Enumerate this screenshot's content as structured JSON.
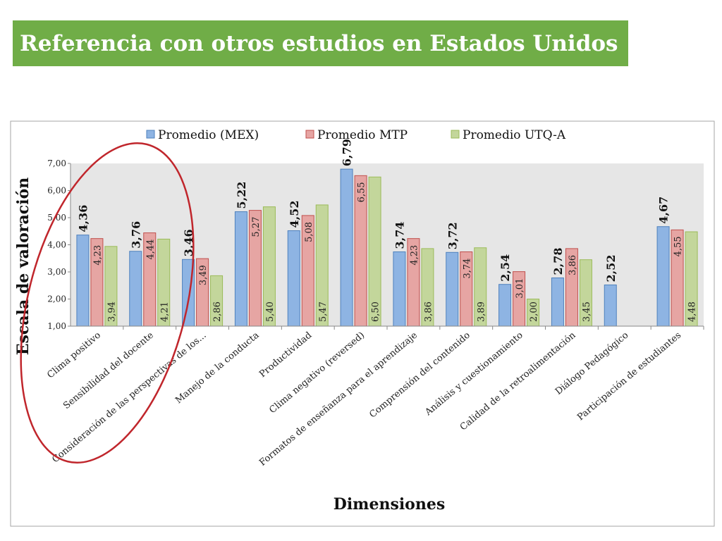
{
  "title": "Referencia con otros estudios en Estados Unidos",
  "chart_data": {
    "type": "bar",
    "title": "",
    "xlabel": "Dimensiones",
    "ylabel": "Escala de valoración",
    "ylim": [
      1,
      7
    ],
    "yticks": [
      "1,00",
      "2,00",
      "3,00",
      "4,00",
      "5,00",
      "6,00",
      "7,00"
    ],
    "legend_position": "top",
    "grid": false,
    "categories": [
      "Clima positivo",
      "Sensibilidad del docente",
      "Consideración de las perspectivas de los...",
      "Manejo de la conducta",
      "Productividad",
      "Clima negativo (reversed)",
      "Formatos de enseñanza para el aprendizaje",
      "Comprensión del contenido",
      "Análisis y cuestionamiento",
      "Calidad de la retroalimentación",
      "Diálogo Pedagógico",
      "Participación  de estudiantes"
    ],
    "series": [
      {
        "name": "Promedio (MEX)",
        "color": "#8eb4e3",
        "values": [
          4.36,
          3.76,
          3.46,
          5.22,
          4.52,
          6.79,
          3.74,
          3.72,
          2.54,
          2.78,
          2.52,
          4.67
        ],
        "labels": [
          "4,36",
          "3,76",
          "3,46",
          "5,22",
          "4,52",
          "6,79",
          "3,74",
          "3,72",
          "2,54",
          "2,78",
          "2,52",
          "4,67"
        ]
      },
      {
        "name": "Promedio MTP",
        "color": "#e6a5a3",
        "values": [
          4.23,
          4.44,
          3.49,
          5.27,
          5.08,
          6.55,
          4.23,
          3.74,
          3.01,
          3.86,
          null,
          4.55
        ],
        "labels": [
          "4,23",
          "4,44",
          "3,49",
          "5,27",
          "5,08",
          "6,55",
          "4,23",
          "3,74",
          "3,01",
          "3,86",
          "",
          "4,55"
        ]
      },
      {
        "name": "Promedio UTQ-A",
        "color": "#c3d69b",
        "values": [
          3.94,
          4.21,
          2.86,
          5.4,
          5.47,
          6.5,
          3.86,
          3.89,
          2.0,
          3.45,
          null,
          4.48
        ],
        "labels": [
          "3,94",
          "4,21",
          "2,86",
          "5,40",
          "5,47",
          "6,50",
          "3,86",
          "3,89",
          "2,00",
          "3,45",
          "",
          "4,48"
        ]
      }
    ],
    "annotation": "red-ellipse-highlight"
  }
}
